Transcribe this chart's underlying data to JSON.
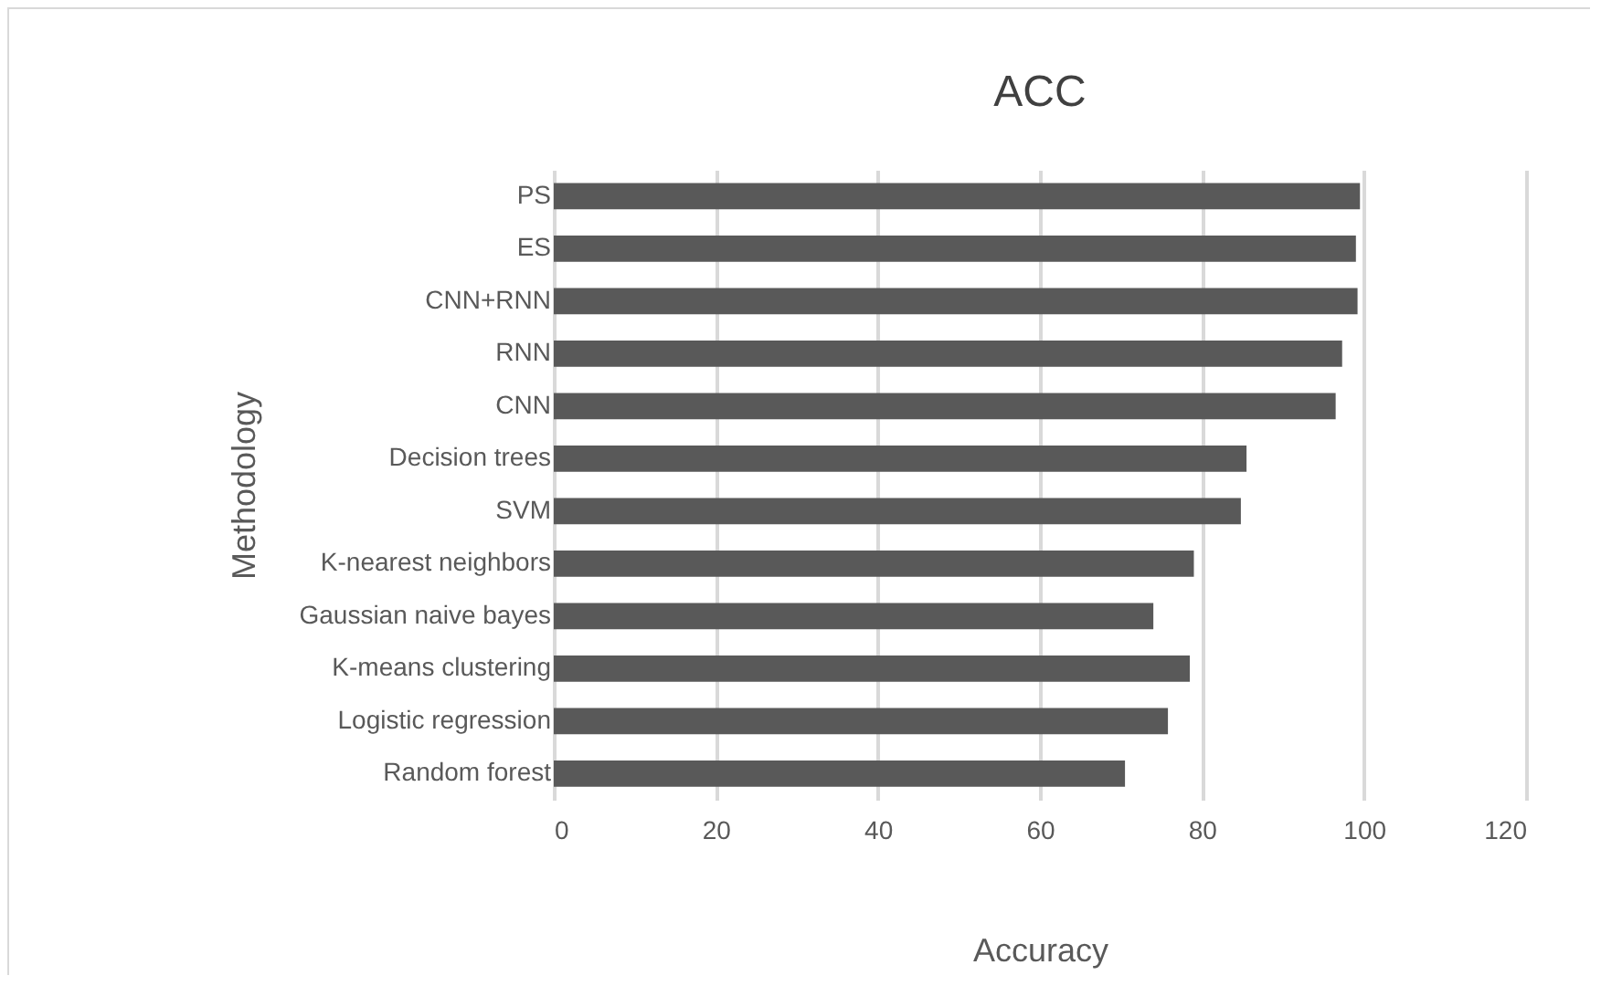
{
  "chart_data": {
    "type": "bar",
    "orientation": "horizontal",
    "title": "ACC",
    "xlabel": "Accuracy",
    "ylabel": "Methodology",
    "categories": [
      "PS",
      "ES",
      "CNN+RNN",
      "RNN",
      "CNN",
      "Decision trees",
      "SVM",
      "K-nearest neighbors",
      "Gaussian naive bayes",
      "K-means clustering",
      "Logistic regression",
      "Random forest"
    ],
    "values": [
      99.5,
      99,
      99.2,
      97.3,
      96.5,
      85.5,
      84.8,
      79,
      74,
      78.5,
      75.8,
      70.5
    ],
    "color": "#595959",
    "xlim": [
      0,
      120
    ],
    "xticks": [
      0,
      20,
      40,
      60,
      80,
      100,
      120
    ],
    "grid": "x"
  }
}
